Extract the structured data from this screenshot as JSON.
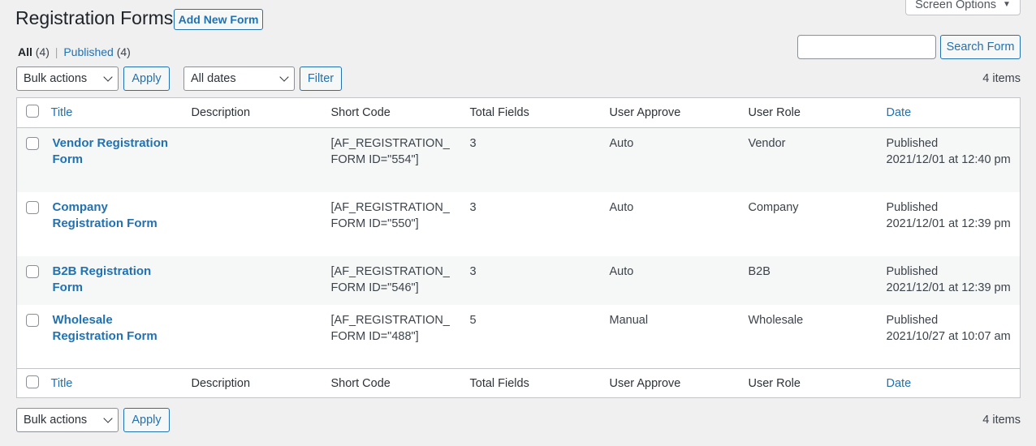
{
  "header": {
    "title": "Registration Forms",
    "add_new": "Add New Form",
    "screen_options": "Screen Options"
  },
  "views": {
    "all": "All",
    "all_count": "(4)",
    "sep": "|",
    "published": "Published",
    "published_count": "(4)"
  },
  "search": {
    "value": "",
    "button": "Search Form"
  },
  "top_nav": {
    "bulk": "Bulk actions",
    "apply": "Apply",
    "dates": "All dates",
    "filter": "Filter",
    "count": "4 items"
  },
  "bottom_nav": {
    "bulk": "Bulk actions",
    "apply": "Apply",
    "count": "4 items"
  },
  "columns": {
    "title": "Title",
    "description": "Description",
    "shortcode": "Short Code",
    "total": "Total Fields",
    "approve": "User Approve",
    "role": "User Role",
    "date": "Date"
  },
  "rows": [
    {
      "title": "Vendor Registration Form",
      "description": "",
      "shortcode": "[AF_REGISTRATION_FORM ID=\"554\"]",
      "total": "3",
      "approve": "Auto",
      "role": "Vendor",
      "status": "Published",
      "date": "2021/12/01 at 12:40 pm"
    },
    {
      "title": "Company Registration Form",
      "description": "",
      "shortcode": "[AF_REGISTRATION_FORM ID=\"550\"]",
      "total": "3",
      "approve": "Auto",
      "role": "Company",
      "status": "Published",
      "date": "2021/12/01 at 12:39 pm"
    },
    {
      "title": "B2B Registration Form",
      "description": "",
      "shortcode": "[AF_REGISTRATION_FORM ID=\"546\"]",
      "total": "3",
      "approve": "Auto",
      "role": "B2B",
      "status": "Published",
      "date": "2021/12/01 at 12:39 pm"
    },
    {
      "title": "Wholesale Registration Form",
      "description": "",
      "shortcode": "[AF_REGISTRATION_FORM ID=\"488\"]",
      "total": "5",
      "approve": "Manual",
      "role": "Wholesale",
      "status": "Published",
      "date": "2021/10/27 at 10:07 am"
    }
  ]
}
